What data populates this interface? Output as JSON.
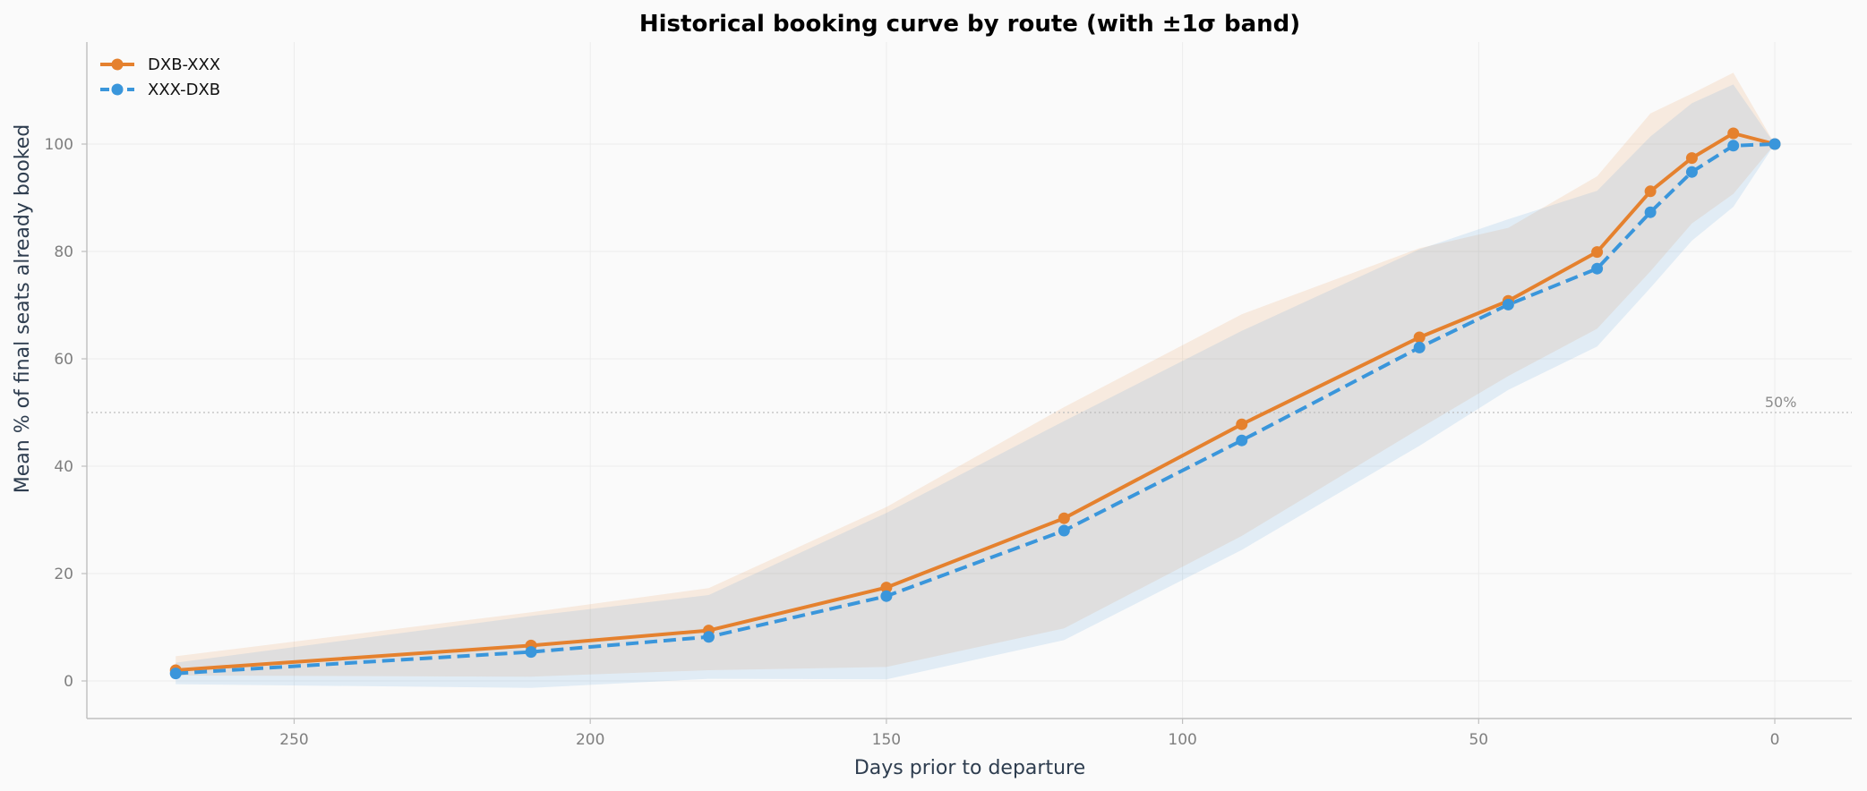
{
  "chart_data": {
    "type": "line",
    "title": "Historical booking curve by route  (with ±1σ band)",
    "xlabel": "Days prior to departure",
    "ylabel": "Mean % of final seats already booked",
    "xlim": [
      285,
      -13
    ],
    "ylim": [
      -7,
      119
    ],
    "x_inverted": true,
    "x_ticks": [
      250,
      200,
      150,
      100,
      50,
      0
    ],
    "y_ticks": [
      0,
      20,
      40,
      60,
      80,
      100
    ],
    "grid": true,
    "legend_position": "top-left",
    "reference_line": {
      "y": 50,
      "label": "50%"
    },
    "x": [
      270,
      210,
      180,
      150,
      120,
      90,
      60,
      45,
      30,
      21,
      14,
      7,
      0
    ],
    "series": [
      {
        "name": "DXB-XXX",
        "color": "#e5812e",
        "line_style": "solid",
        "values": [
          2.0,
          6.6,
          9.4,
          17.4,
          30.3,
          47.8,
          64.0,
          70.8,
          79.9,
          91.2,
          97.4,
          102.0,
          100.0
        ],
        "upper": [
          4.6,
          12.8,
          17.3,
          32.4,
          51.0,
          68.3,
          80.6,
          84.4,
          94.0,
          105.7,
          109.4,
          113.3,
          100.0
        ],
        "lower": [
          1.0,
          0.8,
          2.0,
          2.6,
          9.8,
          27.0,
          47.0,
          56.8,
          65.6,
          76.3,
          85.2,
          90.7,
          100.0
        ]
      },
      {
        "name": "XXX-DXB",
        "color": "#3a96db",
        "line_style": "dashed",
        "values": [
          1.4,
          5.4,
          8.2,
          15.8,
          28.0,
          44.8,
          62.1,
          70.1,
          76.8,
          87.3,
          94.8,
          99.7,
          100.0
        ],
        "upper": [
          3.4,
          12.1,
          16.0,
          31.3,
          48.4,
          65.2,
          80.4,
          86.0,
          91.3,
          101.4,
          107.6,
          111.1,
          100.0
        ],
        "lower": [
          -0.6,
          -1.3,
          0.4,
          0.3,
          7.6,
          24.4,
          43.8,
          54.2,
          62.3,
          73.2,
          82.0,
          88.3,
          100.0
        ]
      }
    ]
  }
}
